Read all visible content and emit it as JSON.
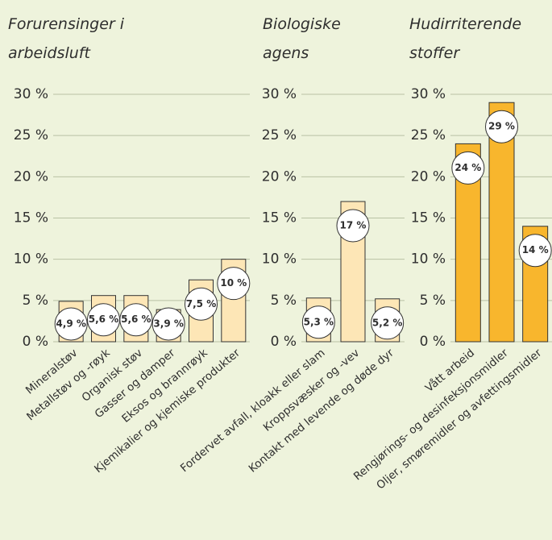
{
  "chart_data": [
    {
      "type": "bar",
      "title": "Forurensinger i arbeidsluft",
      "categories": [
        "Mineralstøv",
        "Metallstøv og -røyk",
        "Organisk støv",
        "Gasser og damper",
        "Eksos og brannrøyk",
        "Kjemikalier og kjemiske produkter"
      ],
      "values": [
        4.9,
        5.6,
        5.6,
        3.9,
        7.5,
        10
      ],
      "value_labels": [
        "4,9 %",
        "5,6 %",
        "5,6 %",
        "3,9 %",
        "7,5 %",
        "10 %"
      ],
      "color": "#fde6b6",
      "ylim": [
        0,
        30
      ],
      "yticks": [
        {
          "value": 0,
          "label": "0 %"
        },
        {
          "value": 5,
          "label": "5 %"
        },
        {
          "value": 10,
          "label": "10 %"
        },
        {
          "value": 15,
          "label": "15 %"
        },
        {
          "value": 20,
          "label": "20 %"
        },
        {
          "value": 25,
          "label": "25 %"
        },
        {
          "value": 30,
          "label": "30 %"
        }
      ],
      "grid": true
    },
    {
      "type": "bar",
      "title": "Biologiske agens",
      "categories": [
        "Fordervet avfall, kloakk eller slam",
        "Kroppsvæsker og -vev",
        "Kontakt med levende og døde dyr"
      ],
      "values": [
        5.3,
        17,
        5.2
      ],
      "value_labels": [
        "5,3 %",
        "17 %",
        "5,2 %"
      ],
      "color": "#fde6b6",
      "ylim": [
        0,
        30
      ],
      "yticks": [
        {
          "value": 0,
          "label": "0 %"
        },
        {
          "value": 5,
          "label": "5 %"
        },
        {
          "value": 10,
          "label": "10 %"
        },
        {
          "value": 15,
          "label": "15 %"
        },
        {
          "value": 20,
          "label": "20 %"
        },
        {
          "value": 25,
          "label": "25 %"
        },
        {
          "value": 30,
          "label": "30 %"
        }
      ],
      "grid": true
    },
    {
      "type": "bar",
      "title": "Hudirriterende stoffer",
      "categories": [
        "Vått arbeid",
        "Rengjørings- og desinfeksjonsmidler",
        "Oljer, smøremidler og avfettingsmidler"
      ],
      "values": [
        24,
        29,
        14
      ],
      "value_labels": [
        "24 %",
        "29 %",
        "14 %"
      ],
      "color": "#f8b62d",
      "ylim": [
        0,
        30
      ],
      "yticks": [
        {
          "value": 0,
          "label": "0 %"
        },
        {
          "value": 5,
          "label": "5 %"
        },
        {
          "value": 10,
          "label": "10 %"
        },
        {
          "value": 15,
          "label": "15 %"
        },
        {
          "value": 20,
          "label": "20 %"
        },
        {
          "value": 25,
          "label": "25 %"
        },
        {
          "value": 30,
          "label": "30 %"
        }
      ],
      "grid": true
    }
  ]
}
